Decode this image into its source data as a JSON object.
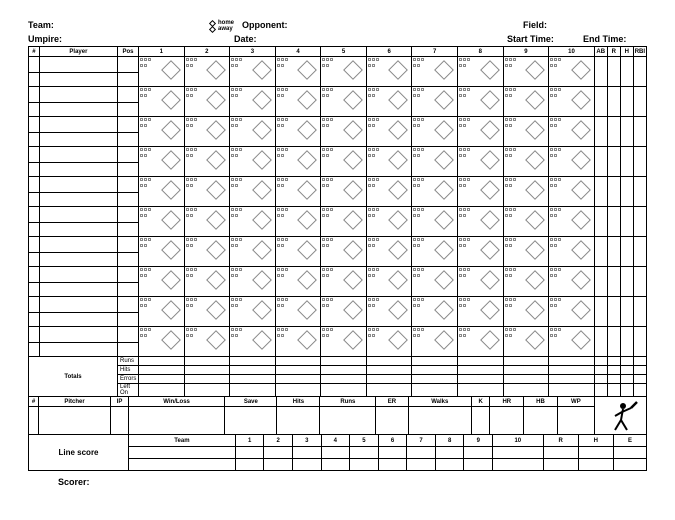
{
  "header": {
    "team": "Team:",
    "opponent": "Opponent:",
    "field": "Field:",
    "umpire": "Umpire:",
    "date": "Date:",
    "start_time": "Start Time:",
    "end_time": "End Time:",
    "home": "home",
    "away": "away"
  },
  "bat_cols": {
    "num": "#",
    "player": "Player",
    "pos": "Pos",
    "innings": [
      "1",
      "2",
      "3",
      "4",
      "5",
      "6",
      "7",
      "8",
      "9",
      "10"
    ],
    "stats": [
      "AB",
      "R",
      "H",
      "RBI"
    ]
  },
  "totals": {
    "label": "Totals",
    "rows": [
      "Runs",
      "Hits",
      "Errors",
      "Left On"
    ]
  },
  "pitcher": {
    "num": "#",
    "label": "Pitcher",
    "cols": [
      "IP",
      "Win/Loss",
      "Save",
      "Hits",
      "Runs",
      "ER",
      "Walks",
      "K",
      "HR",
      "HB",
      "WP"
    ]
  },
  "linescore": {
    "label": "Line score",
    "team": "Team",
    "innings": [
      "1",
      "2",
      "3",
      "4",
      "5",
      "6",
      "7",
      "8",
      "9",
      "10"
    ],
    "tail": [
      "R",
      "H",
      "E"
    ]
  },
  "scorer": "Scorer:",
  "batter_rows": 10
}
